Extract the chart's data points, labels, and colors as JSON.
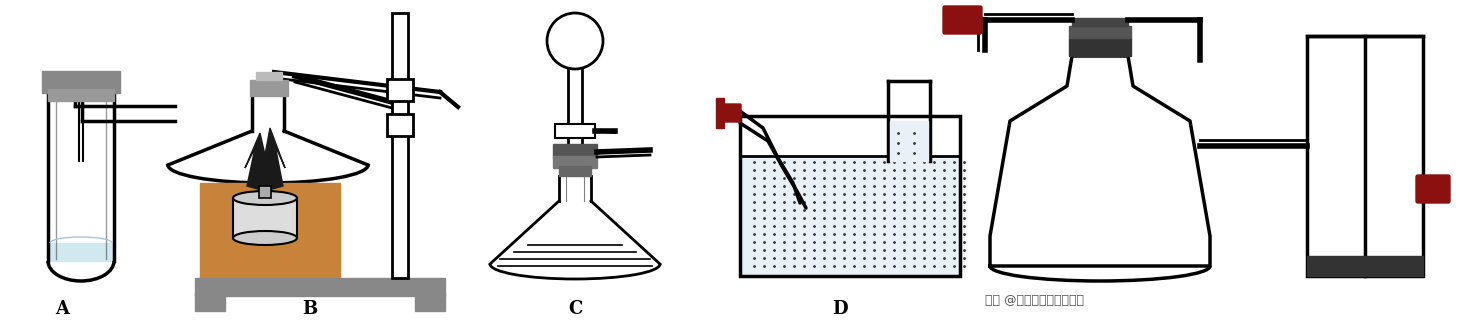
{
  "bg_color": "#ffffff",
  "label_A": "A",
  "label_B": "B",
  "label_C": "C",
  "label_D": "D",
  "watermark": "头条 @中学化学根雕式学习",
  "label_fontsize": 13,
  "dark_red": "#8B1010",
  "black": "#000000",
  "gray": "#888888",
  "dgray": "#555555",
  "lgray": "#cccccc",
  "wood_color": "#c8833a",
  "water_color": "#e8f0f8",
  "figure_width": 14.8,
  "figure_height": 3.31,
  "dpi": 100
}
